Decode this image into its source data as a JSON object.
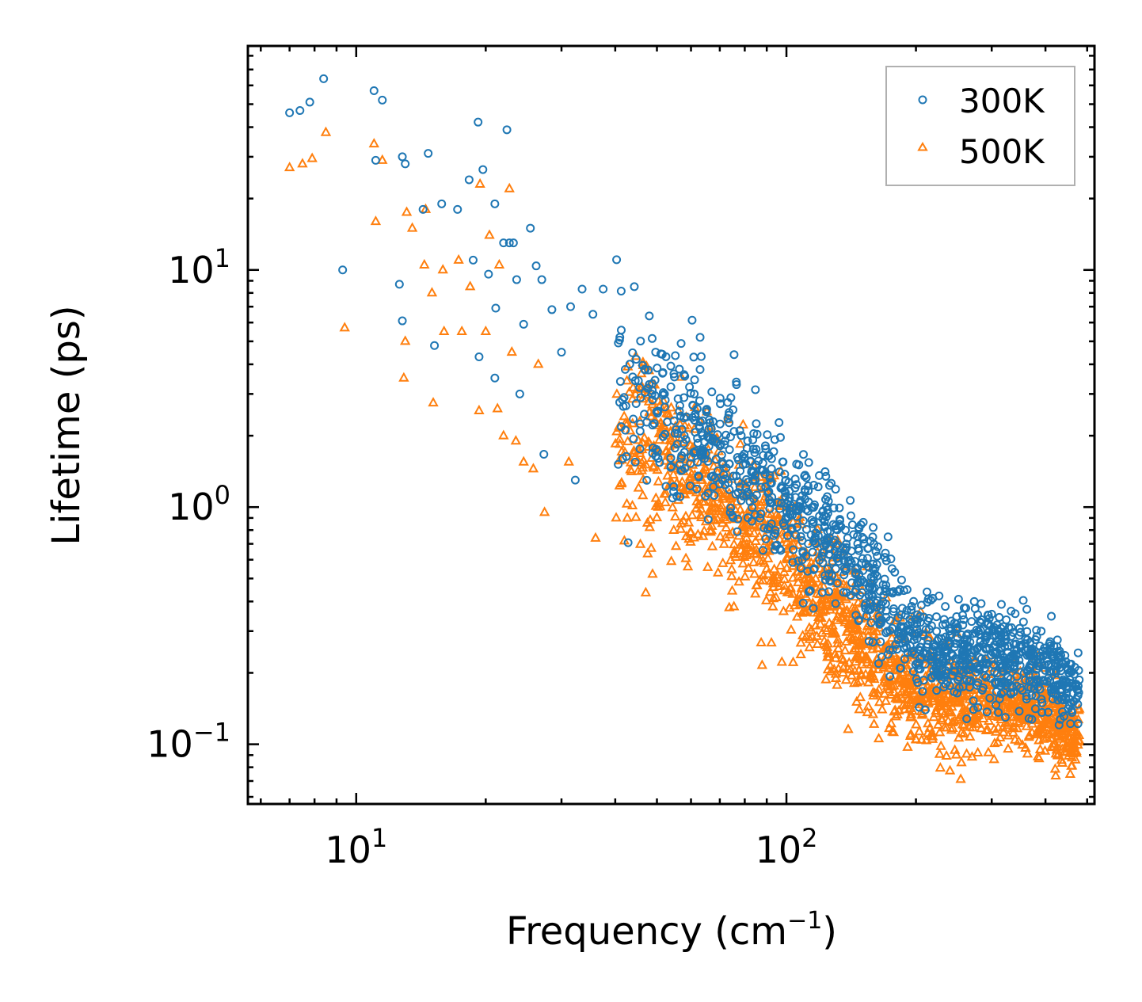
{
  "chart_data": {
    "type": "scatter",
    "xscale": "log",
    "yscale": "log",
    "xlabel": {
      "text": "Frequency (cm",
      "sup": "−1",
      "close": ")"
    },
    "ylabel": "Lifetime (ps)",
    "xlim": [
      5.6,
      520
    ],
    "ylim": [
      0.056,
      88
    ],
    "xticks": [
      {
        "value": 10,
        "base": "10",
        "exp": "1"
      },
      {
        "value": 100,
        "base": "10",
        "exp": "2"
      }
    ],
    "yticks": [
      {
        "value": 0.1,
        "base": "10",
        "exp": "−1"
      },
      {
        "value": 1,
        "base": "10",
        "exp": "0"
      },
      {
        "value": 10,
        "base": "10",
        "exp": "1"
      }
    ],
    "legend_position": "top-right",
    "series": [
      {
        "name": "300K",
        "marker": "circle-open",
        "color": "#1f77b4",
        "points": [
          [
            7.0,
            46
          ],
          [
            7.4,
            47
          ],
          [
            7.8,
            51
          ],
          [
            8.4,
            64
          ],
          [
            11.0,
            57
          ],
          [
            11.5,
            52
          ],
          [
            12.8,
            30
          ],
          [
            13.0,
            28
          ],
          [
            14.7,
            31
          ],
          [
            9.3,
            10
          ],
          [
            11.1,
            29
          ],
          [
            14.3,
            18
          ],
          [
            15.8,
            19
          ],
          [
            17.2,
            18
          ],
          [
            19.2,
            42
          ],
          [
            22.4,
            39
          ],
          [
            18.3,
            24
          ],
          [
            18.7,
            11
          ],
          [
            19.7,
            26.5
          ],
          [
            21.0,
            19
          ],
          [
            22.0,
            13
          ],
          [
            22.7,
            13
          ],
          [
            25.4,
            15
          ],
          [
            23.2,
            13
          ],
          [
            12.6,
            8.7
          ],
          [
            12.8,
            6.1
          ],
          [
            15.2,
            4.8
          ],
          [
            19.3,
            4.3
          ],
          [
            20.3,
            9.6
          ],
          [
            21.1,
            6.9
          ],
          [
            23.6,
            9.1
          ],
          [
            24.5,
            5.9
          ],
          [
            26.2,
            10.4
          ],
          [
            27.0,
            9.1
          ],
          [
            28.5,
            6.8
          ],
          [
            30.0,
            4.5
          ],
          [
            31.5,
            7.0
          ],
          [
            33.5,
            8.3
          ],
          [
            35.5,
            6.5
          ],
          [
            37.5,
            8.3
          ],
          [
            41.0,
            5.2
          ],
          [
            44.3,
            8.5
          ],
          [
            48.0,
            6.4
          ],
          [
            63.0,
            5.2
          ],
          [
            27.3,
            1.67
          ],
          [
            32.3,
            1.3
          ],
          [
            21.0,
            3.5
          ],
          [
            24.0,
            3.0
          ]
        ]
      },
      {
        "name": "500K",
        "marker": "triangle-open",
        "color": "#ff7f0e",
        "points": [
          [
            7.0,
            27
          ],
          [
            7.5,
            28
          ],
          [
            7.9,
            29.5
          ],
          [
            8.5,
            38
          ],
          [
            11.0,
            34
          ],
          [
            11.5,
            29
          ],
          [
            9.4,
            5.7
          ],
          [
            11.1,
            16
          ],
          [
            13.1,
            17.5
          ],
          [
            13.5,
            15
          ],
          [
            14.5,
            18
          ],
          [
            15.9,
            10
          ],
          [
            17.3,
            11
          ],
          [
            18.4,
            8.5
          ],
          [
            19.4,
            23
          ],
          [
            20.4,
            14
          ],
          [
            21.5,
            10.5
          ],
          [
            22.7,
            22
          ],
          [
            14.4,
            10.5
          ],
          [
            15.0,
            8.0
          ],
          [
            13.0,
            5.0
          ],
          [
            12.9,
            3.5
          ],
          [
            15.1,
            2.75
          ],
          [
            19.3,
            2.55
          ],
          [
            21.3,
            2.6
          ],
          [
            16.0,
            5.5
          ],
          [
            17.6,
            5.5
          ],
          [
            20.0,
            5.5
          ],
          [
            23.0,
            4.5
          ],
          [
            26.5,
            4.0
          ],
          [
            27.4,
            0.95
          ],
          [
            23.5,
            1.9
          ],
          [
            25.8,
            1.45
          ],
          [
            31.2,
            1.55
          ],
          [
            36.0,
            0.74
          ],
          [
            40.2,
            0.9
          ],
          [
            42.0,
            0.72
          ],
          [
            48.5,
            0.67
          ],
          [
            54.0,
            0.59
          ],
          [
            59.0,
            0.56
          ],
          [
            22.0,
            2.0
          ],
          [
            24.5,
            1.55
          ]
        ]
      }
    ],
    "dense_band": [
      {
        "series": "300K",
        "freq": [
          40,
          60,
          80,
          100,
          130,
          160,
          200,
          280,
          380,
          480
        ],
        "center": [
          3.4,
          2.0,
          1.45,
          0.98,
          0.65,
          0.47,
          0.26,
          0.24,
          0.22,
          0.17
        ],
        "spread": [
          0.38,
          0.32,
          0.28,
          0.3,
          0.24,
          0.26,
          0.18,
          0.2,
          0.18,
          0.14
        ],
        "count": 1300
      },
      {
        "series": "500K",
        "freq": [
          40,
          60,
          80,
          100,
          130,
          160,
          200,
          280,
          380,
          480
        ],
        "center": [
          2.3,
          1.3,
          0.85,
          0.56,
          0.36,
          0.23,
          0.16,
          0.15,
          0.14,
          0.1
        ],
        "spread": [
          0.4,
          0.34,
          0.3,
          0.32,
          0.3,
          0.26,
          0.2,
          0.2,
          0.18,
          0.14
        ],
        "count": 1600
      }
    ]
  }
}
